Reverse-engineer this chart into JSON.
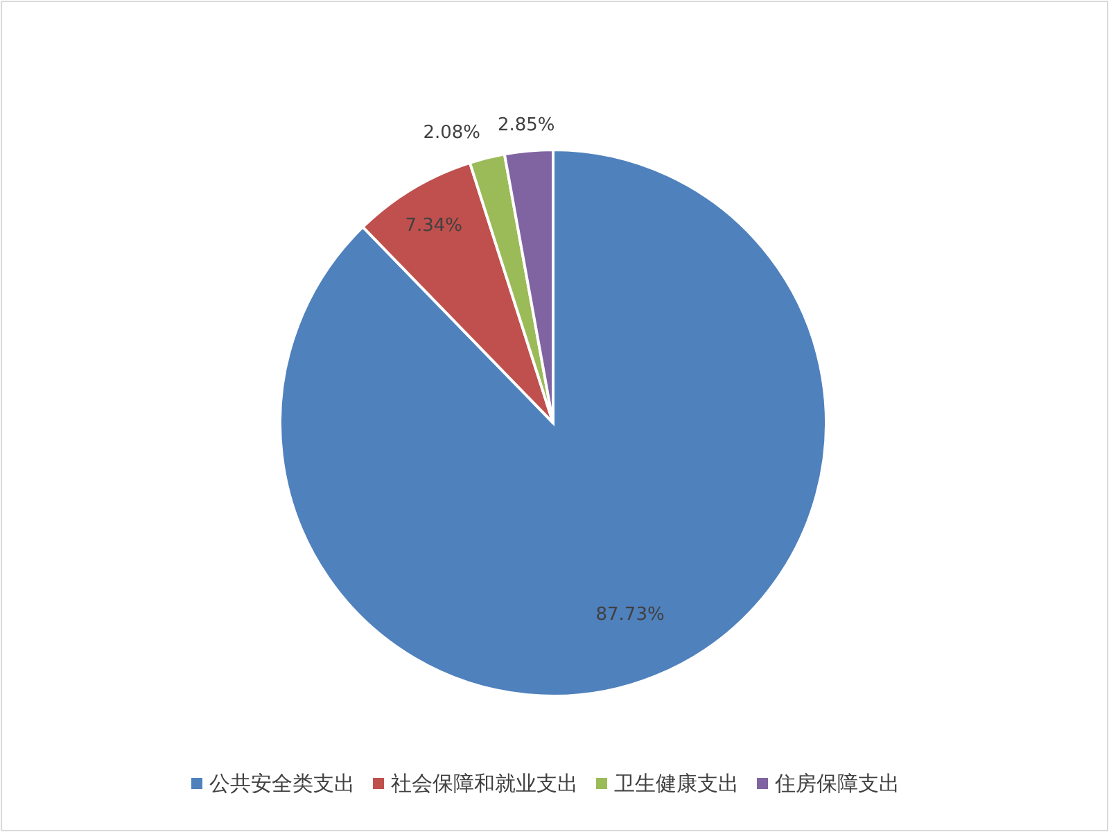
{
  "chart_data": {
    "type": "pie",
    "categories": [
      "公共安全类支出",
      "社会保障和就业支出",
      "卫生健康支出",
      "住房保障支出"
    ],
    "values": [
      87.73,
      7.34,
      2.08,
      2.85
    ],
    "value_labels": [
      "87.73%",
      "7.34%",
      "2.08%",
      "2.85%"
    ],
    "colors": [
      "#4f81bd",
      "#c0504d",
      "#9bbb59",
      "#8064a2"
    ],
    "legend": "bottom"
  }
}
